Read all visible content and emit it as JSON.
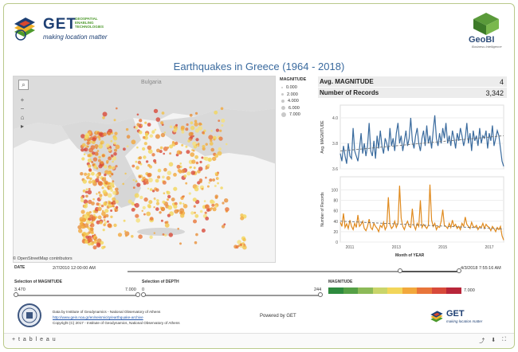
{
  "header": {
    "get_word": "GET",
    "get_sub": [
      "GEOSPATIAL",
      "ENABLING",
      "TECHNOLOGIES"
    ],
    "get_tagline": "making location matter",
    "geobi_word": "GeoBI",
    "geobi_tagline": "Business Intelligence"
  },
  "title": "Earthquakes in Greece (1964 - 2018)",
  "map": {
    "search_icon": "search-icon",
    "zoom_in": "+",
    "zoom_out": "−",
    "home": "⌂",
    "pan": "▸",
    "label_bulgaria": "Bulgaria",
    "copyright": "© OpenStreetMap contributors"
  },
  "magnitude_legend": {
    "title": "MAGNITUDE",
    "items": [
      "0.000",
      "2.000",
      "4.000",
      "6.000",
      "7.000"
    ]
  },
  "kpis": [
    {
      "label": "Avg. MAGNITUDE",
      "value": "4"
    },
    {
      "label": "Number of Records",
      "value": "3,342"
    }
  ],
  "chart_data": [
    {
      "type": "line",
      "ylabel": "Avg. MAGNITUDE",
      "ylim": [
        3.6,
        4.1
      ],
      "yticks": [
        "4.0",
        "3.8",
        "3.6"
      ],
      "xticks": [
        "2011",
        "2013",
        "2015",
        "2017"
      ],
      "color": "#3a6b9e",
      "trend": [
        3.74,
        3.86
      ],
      "values": [
        3.72,
        3.66,
        3.78,
        3.7,
        3.64,
        3.8,
        3.7,
        3.68,
        3.92,
        3.74,
        3.7,
        3.66,
        3.76,
        3.88,
        3.72,
        3.8,
        3.7,
        3.78,
        3.96,
        3.74,
        3.7,
        3.82,
        3.68,
        3.86,
        3.76,
        3.9,
        3.78,
        3.72,
        3.84,
        3.8,
        3.74,
        3.92,
        3.78,
        3.84,
        3.74,
        3.88,
        3.96,
        3.8,
        3.86,
        3.74,
        3.82,
        3.9,
        3.78,
        3.84,
        4.0,
        3.82,
        3.76,
        3.86,
        3.92,
        3.8,
        3.74,
        3.84,
        3.9,
        3.78,
        3.94,
        3.8,
        3.86,
        3.76,
        3.9,
        4.02,
        3.84,
        3.78,
        3.88,
        3.8,
        3.92,
        3.84,
        3.96,
        3.8,
        3.86,
        3.78,
        3.9,
        3.84,
        3.76,
        3.88,
        3.82,
        3.92,
        3.86,
        3.78,
        3.84,
        3.96,
        3.8,
        3.88,
        3.74,
        3.9,
        3.82,
        3.86,
        3.78,
        3.92,
        3.8,
        3.86,
        3.84,
        3.9,
        3.76,
        3.88,
        3.82,
        3.94,
        3.78,
        3.84,
        3.9,
        3.86,
        3.76,
        3.66,
        3.62
      ]
    },
    {
      "type": "line",
      "ylabel": "Number of Records",
      "ylim": [
        0,
        125
      ],
      "yticks": [
        "100",
        "80",
        "60",
        "40",
        "20",
        "0"
      ],
      "xticks": [
        "2011",
        "2013",
        "2015",
        "2017"
      ],
      "xlabel": "Month of YEAR",
      "color": "#e08a1e",
      "trend": [
        40,
        25
      ],
      "values": [
        38,
        30,
        55,
        28,
        35,
        26,
        42,
        30,
        24,
        36,
        28,
        52,
        30,
        34,
        40,
        26,
        22,
        30,
        44,
        28,
        24,
        36,
        30,
        26,
        20,
        32,
        28,
        38,
        24,
        30,
        86,
        34,
        26,
        30,
        40,
        28,
        36,
        108,
        46,
        30,
        24,
        34,
        40,
        30,
        28,
        64,
        32,
        24,
        36,
        30,
        80,
        28,
        34,
        30,
        26,
        32,
        110,
        42,
        30,
        36,
        24,
        30,
        28,
        40,
        62,
        32,
        30,
        26,
        36,
        28,
        42,
        30,
        34,
        26,
        30,
        24,
        36,
        30,
        48,
        34,
        30,
        26,
        38,
        30,
        28,
        32,
        24,
        30,
        28,
        36,
        26,
        34,
        30,
        28,
        22,
        30,
        26,
        20,
        28,
        24,
        30,
        12,
        4
      ]
    }
  ],
  "date_filter": {
    "label": "DATE",
    "start": "2/7/2010 12:00:00 AM",
    "end": "4/3/2018 7:55:16 AM"
  },
  "magnitude_filter": {
    "label": "Selection of MAGNITUDE",
    "min": "3.470",
    "max": "7.000"
  },
  "depth_filter": {
    "label": "Selection of DEPTH",
    "min": "0",
    "max": "244"
  },
  "color_legend": {
    "title": "MAGNITUDE",
    "max_label": "7.000",
    "colors": [
      "#2e8b3e",
      "#55a046",
      "#8cba58",
      "#c9d56a",
      "#f2d65a",
      "#f2a83c",
      "#e8753a",
      "#d84a3a",
      "#b8263a"
    ]
  },
  "footer": {
    "line1": "Data by Institute of Geodynamics - National Observatory of Athens",
    "link": "http://www.gein.noa.gr/en/seismicity/earthquake-archive",
    "line3": "Copyright (C) 2017 - Institute of Geodynamics, National Observatory of Athens",
    "powered": "Powered by GET"
  },
  "tabbar": {
    "brand": "+ t a b l e a u",
    "icons": [
      "share-icon",
      "download-icon",
      "fullscreen-icon"
    ]
  }
}
